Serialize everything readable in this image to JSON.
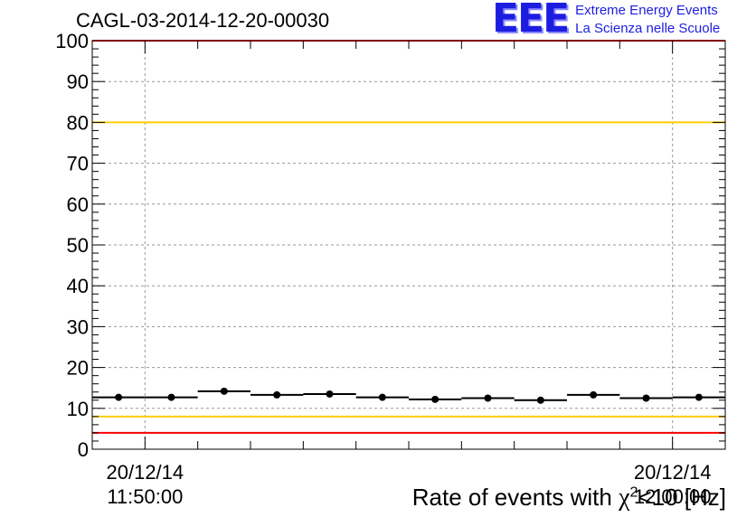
{
  "header": {
    "title": "CAGL-03-2014-12-20-00030",
    "logo_mark": "EEE",
    "logo_line1": "Extreme Energy Events",
    "logo_line2": "La Scienza nelle Scuole"
  },
  "chart_data": {
    "type": "scatter",
    "title": "CAGL-03-2014-12-20-00030",
    "xlabel_prefix": "Rate of events with ",
    "xlabel_chi": "χ",
    "xlabel_sup": "2",
    "xlabel_suffix": "<10 [Hz]",
    "ylabel": "",
    "ylim": [
      0,
      100
    ],
    "yticks": [
      "0",
      "10",
      "20",
      "30",
      "40",
      "50",
      "60",
      "70",
      "80",
      "90",
      "100"
    ],
    "x_tick_labels": [
      {
        "date": "20/12/14",
        "time": "11:50:00",
        "x": 0.5
      },
      {
        "date": "20/12/14",
        "time": "12:00:00",
        "x": 10.5
      }
    ],
    "xlim": [
      -0.5,
      11.5
    ],
    "grid": true,
    "series": [
      {
        "x": [
          0,
          1,
          2,
          3,
          4,
          5,
          6,
          7,
          8,
          9,
          10,
          11
        ],
        "values": [
          12.7,
          12.7,
          14.2,
          13.3,
          13.5,
          12.7,
          12.2,
          12.5,
          12.0,
          13.3,
          12.5,
          12.7
        ],
        "color": "#000000"
      }
    ],
    "reference_lines": [
      {
        "value": 100,
        "color": "#ff0000"
      },
      {
        "value": 80,
        "color": "#ffcc00"
      },
      {
        "value": 8,
        "color": "#ffcc00"
      },
      {
        "value": 4,
        "color": "#ff0000"
      }
    ]
  }
}
